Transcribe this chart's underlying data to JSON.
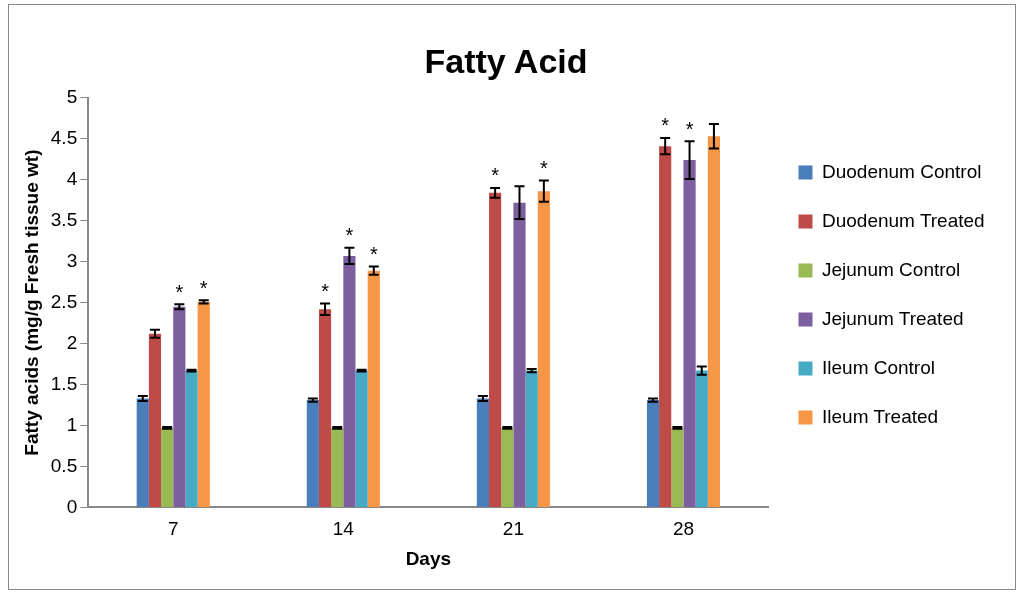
{
  "chart_data": {
    "type": "bar",
    "title": "Fatty Acid",
    "xlabel": "Days",
    "ylabel": "Fatty acids (mg/g Fresh tissue wt)",
    "categories": [
      "7",
      "14",
      "21",
      "28"
    ],
    "series": [
      {
        "name": "Duodenum Control",
        "color": "#4a7ebb",
        "values": [
          1.33,
          1.31,
          1.33,
          1.31
        ],
        "errors": [
          0.03,
          0.02,
          0.03,
          0.02
        ]
      },
      {
        "name": "Duodenum Treated",
        "color": "#be4b48",
        "values": [
          2.12,
          2.42,
          3.84,
          4.41
        ],
        "errors": [
          0.05,
          0.07,
          0.06,
          0.1
        ],
        "value_labels": [
          null,
          "*",
          "*",
          "*"
        ]
      },
      {
        "name": "Jejunum Control",
        "color": "#98b954",
        "values": [
          0.97,
          0.97,
          0.97,
          0.97
        ],
        "errors": [
          0.01,
          0.01,
          0.01,
          0.01
        ]
      },
      {
        "name": "Jejunum Treated",
        "color": "#7d5fa0",
        "values": [
          2.45,
          3.07,
          3.72,
          4.24
        ],
        "errors": [
          0.03,
          0.1,
          0.2,
          0.23
        ],
        "value_labels": [
          "*",
          "*",
          null,
          "*"
        ]
      },
      {
        "name": "Ileum Control",
        "color": "#46aac5",
        "values": [
          1.67,
          1.67,
          1.67,
          1.67
        ],
        "errors": [
          0.01,
          0.01,
          0.02,
          0.05
        ]
      },
      {
        "name": "Ileum Treated",
        "color": "#f79646",
        "values": [
          2.51,
          2.89,
          3.86,
          4.53
        ],
        "errors": [
          0.02,
          0.05,
          0.13,
          0.15
        ],
        "value_labels": [
          "*",
          "*",
          "*",
          null
        ]
      }
    ],
    "ylim": [
      0,
      5
    ],
    "yticks": [
      0,
      0.5,
      1,
      1.5,
      2,
      2.5,
      3,
      3.5,
      4,
      4.5,
      5
    ],
    "grid": false,
    "legend": "right"
  }
}
